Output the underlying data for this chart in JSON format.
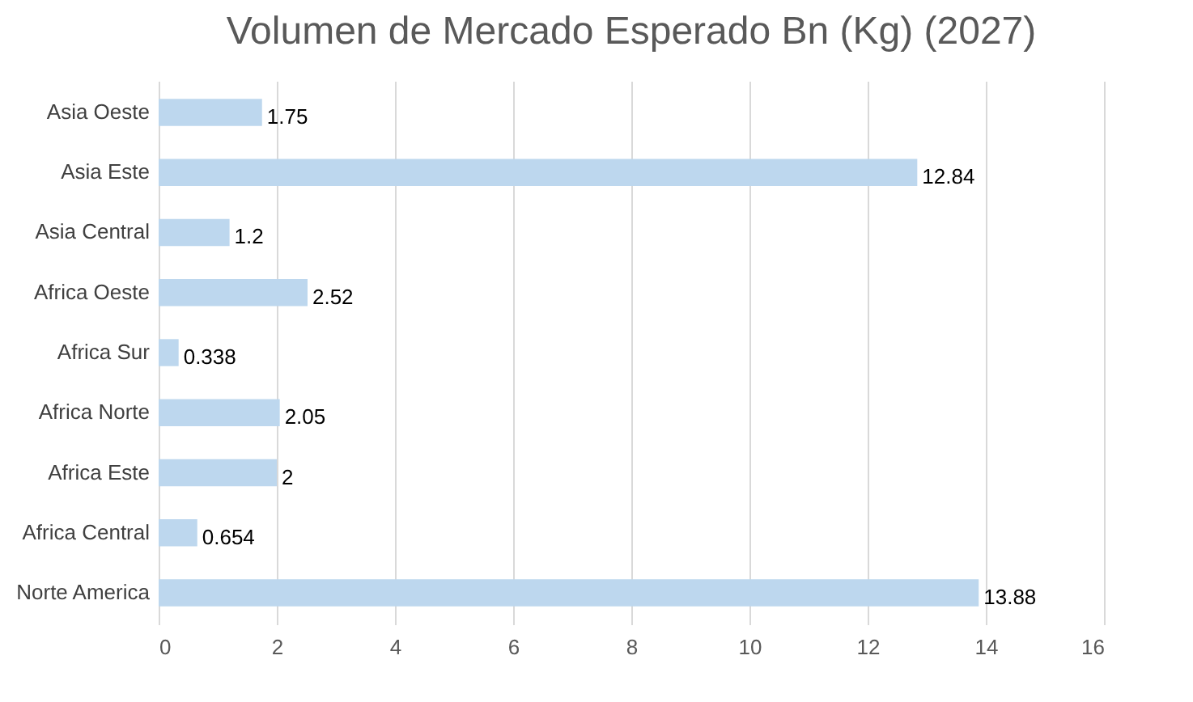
{
  "chart_data": {
    "type": "bar",
    "orientation": "horizontal",
    "title": "Volumen de Mercado Esperado Bn (Kg)  (2027)",
    "categories": [
      "Asia Oeste",
      "Asia Este",
      "Asia Central",
      "Africa Oeste",
      "Africa Sur",
      "Africa Norte",
      "Africa Este",
      "Africa Central",
      "Norte America"
    ],
    "values": [
      1.75,
      12.84,
      1.2,
      2.52,
      0.338,
      2.05,
      2,
      0.654,
      13.88
    ],
    "color": "#bdd7ee",
    "xlim": [
      0,
      16
    ],
    "xticks": [
      0,
      2,
      4,
      6,
      8,
      10,
      12,
      14,
      16
    ],
    "grid": "x",
    "data_labels": true
  }
}
